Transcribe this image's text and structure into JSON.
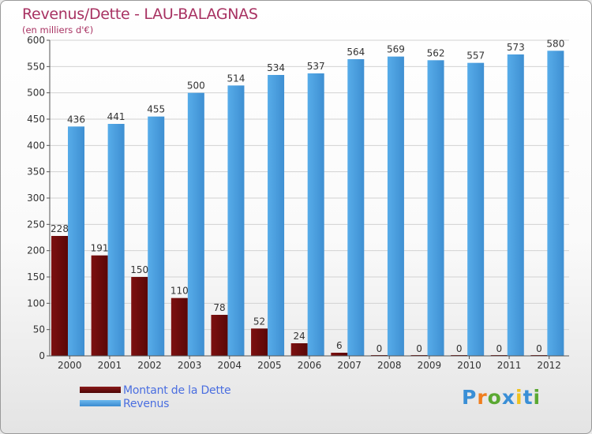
{
  "chart_data": {
    "type": "bar",
    "title": "Revenus/Dette - LAU-BALAGNAS",
    "subtitle": "(en milliers d'€)",
    "categories": [
      "2000",
      "2001",
      "2002",
      "2003",
      "2004",
      "2005",
      "2006",
      "2007",
      "2008",
      "2009",
      "2010",
      "2011",
      "2012"
    ],
    "series": [
      {
        "name": "Montant de la Dette",
        "color": "#6e0b0b",
        "values": [
          228,
          191,
          150,
          110,
          78,
          52,
          24,
          6,
          0,
          0,
          0,
          0,
          0
        ]
      },
      {
        "name": "Revenus",
        "color": "#4ea3e4",
        "values": [
          436,
          441,
          455,
          500,
          514,
          534,
          537,
          564,
          569,
          562,
          557,
          573,
          580
        ]
      }
    ],
    "ylim": [
      0,
      600
    ],
    "yticks": [
      0,
      50,
      100,
      150,
      200,
      250,
      300,
      350,
      400,
      450,
      500,
      550,
      600
    ],
    "grid": true,
    "legend_position": "bottom-left"
  },
  "brand": {
    "letters": [
      "P",
      "r",
      "o",
      "x",
      "i",
      "t",
      "i"
    ],
    "colors": [
      "#3a8fd6",
      "#f07e1e",
      "#5aa832",
      "#3a8fd6",
      "#f0c21e",
      "#3a8fd6",
      "#5aa832"
    ]
  }
}
